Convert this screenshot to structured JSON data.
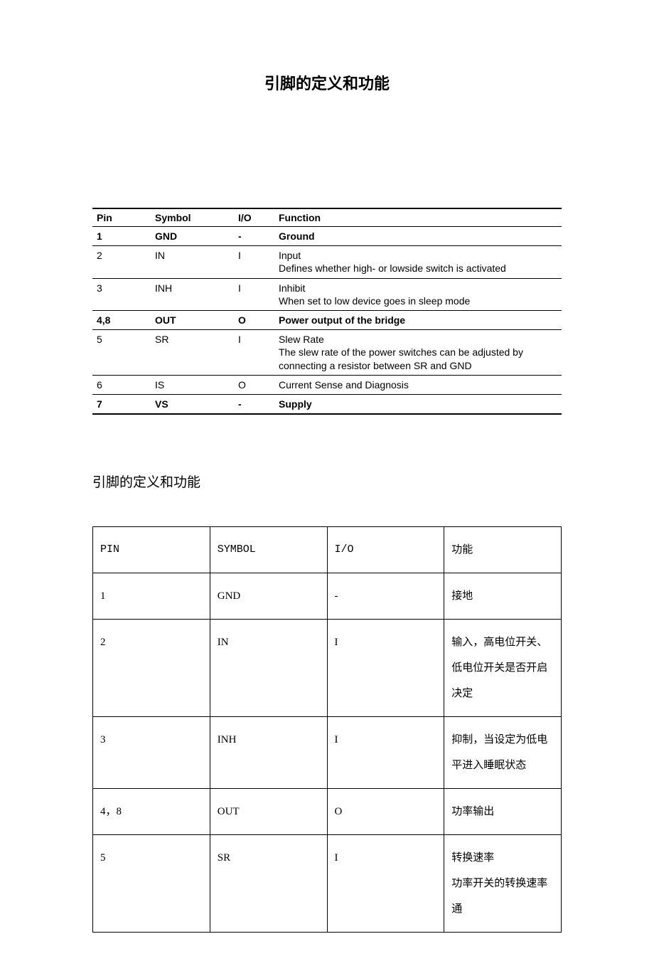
{
  "title": "引脚的定义和功能",
  "table1": {
    "columns": [
      "Pin",
      "Symbol",
      "I/O",
      "Function"
    ],
    "rows": [
      {
        "pin": "1",
        "symbol": "GND",
        "io": "-",
        "func": "Ground",
        "bold": true
      },
      {
        "pin": "2",
        "symbol": "IN",
        "io": "I",
        "func": "Input\nDefines whether high- or lowside switch is activated",
        "bold": false
      },
      {
        "pin": "3",
        "symbol": "INH",
        "io": "I",
        "func": "Inhibit\nWhen set to low device goes in sleep mode",
        "bold": false
      },
      {
        "pin": "4,8",
        "symbol": "OUT",
        "io": "O",
        "func": "Power output of the bridge",
        "bold": true
      },
      {
        "pin": "5",
        "symbol": "SR",
        "io": "I",
        "func": "Slew Rate\nThe slew rate of the power switches can be adjusted by connecting a resistor between SR and GND",
        "bold": false
      },
      {
        "pin": "6",
        "symbol": "IS",
        "io": "O",
        "func": "Current Sense and Diagnosis",
        "bold": false
      },
      {
        "pin": "7",
        "symbol": "VS",
        "io": "-",
        "func": "Supply",
        "bold": true
      }
    ]
  },
  "subTitle": "引脚的定义和功能",
  "table2": {
    "columns": [
      "PIN",
      "SYMBOL",
      "I/O",
      "功能"
    ],
    "rows": [
      {
        "pin": "1",
        "symbol": "GND",
        "io": "-",
        "func": "接地"
      },
      {
        "pin": "2",
        "symbol": "IN",
        "io": "I",
        "func": "输入，高电位开关、低电位开关是否开启决定"
      },
      {
        "pin": "3",
        "symbol": "INH",
        "io": "I",
        "func": "抑制，当设定为低电平进入睡眠状态"
      },
      {
        "pin": "4，8",
        "symbol": "OUT",
        "io": "O",
        "func": "功率输出"
      },
      {
        "pin": "5",
        "symbol": "SR",
        "io": "I",
        "func": "转换速率\n功率开关的转换速率通"
      }
    ]
  }
}
